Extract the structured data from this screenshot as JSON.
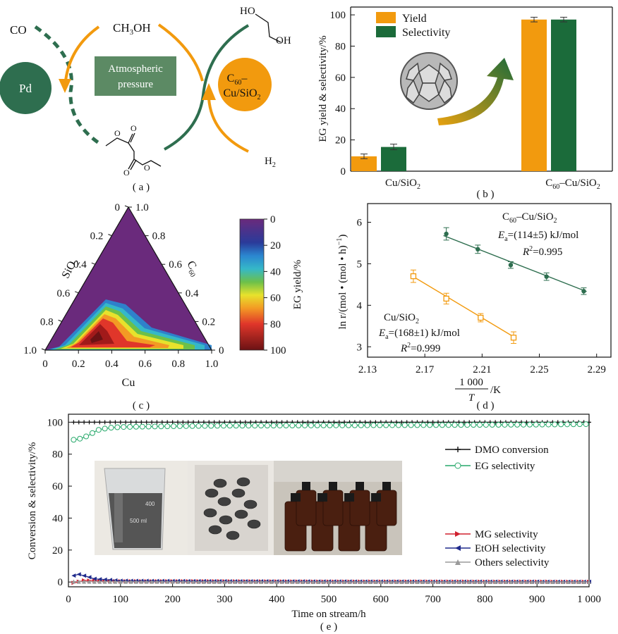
{
  "colors": {
    "green": "#2e6e4f",
    "dark_green": "#1b6b3a",
    "orange": "#f29a0e",
    "box_green": "#5c8a64",
    "conv_black": "#111111",
    "eg_teal": "#27a96b",
    "mg_red": "#d0202e",
    "etoh_blue": "#1f2a8c",
    "others_gray": "#9a9a9a"
  },
  "panel_a": {
    "label": "( a )",
    "co": "CO",
    "methanol": "CH",
    "methanol_sub": "3",
    "methanol_tail": "OH",
    "box_line1": "Atmospheric",
    "box_line2": "pressure",
    "pd": "Pd",
    "catalyst_c": "C",
    "catalyst_c_sub": "60",
    "catalyst_dash": "–",
    "catalyst_line2": "Cu/SiO",
    "catalyst_sub2": "2",
    "h2": "H",
    "h2_sub": "2",
    "ho": "HO",
    "oh": "OH"
  },
  "panel_b": {
    "label": "( b )",
    "ylabel": "EG yield & selectivity/%",
    "categories": [
      "Cu/SiO",
      "C",
      "–Cu/SiO"
    ],
    "cat1": "Cu/SiO",
    "cat1_sub": "2",
    "cat2_pre": "C",
    "cat2_sub1": "60",
    "cat2_mid": "–Cu/SiO",
    "cat2_sub2": "2",
    "yticks": [
      "0",
      "20",
      "40",
      "60",
      "80",
      "100"
    ],
    "legend": [
      "Yield",
      "Selectivity"
    ]
  },
  "panel_c": {
    "label": "( c )",
    "axis_cu": "Cu",
    "axis_sio2": "SiO",
    "axis_sio2_sub": "2",
    "axis_c60": "C",
    "axis_c60_sub": "60",
    "bottom_ticks": [
      "0",
      "0.2",
      "0.4",
      "0.6",
      "0.8",
      "1.0"
    ],
    "left_ticks": [
      "1.0",
      "0.8",
      "0.6",
      "0.4",
      "0.2",
      "0"
    ],
    "right_ticks": [
      "1.0",
      "0.8",
      "0.6",
      "0.4",
      "0.2",
      "0"
    ],
    "colorbar_label": "EG yield/%",
    "colorbar_ticks": [
      "0",
      "20",
      "40",
      "60",
      "80",
      "100"
    ]
  },
  "panel_d": {
    "label": "( d )",
    "xticks": [
      "2.13",
      "2.17",
      "2.21",
      "2.25",
      "2.29"
    ],
    "yticks": [
      "3",
      "4",
      "5",
      "6"
    ],
    "xlabel_num": "1 000",
    "xlabel_den": "T",
    "xlabel_unit": "/K",
    "ylabel": "ln r/(mol • (mol • h)",
    "ylabel_sup": "−1",
    "ylabel_close": ")",
    "green_name_pre": "C",
    "green_name_sub": "60",
    "green_name_post": "–Cu/SiO",
    "green_name_sub2": "2",
    "green_ea": "=(114±5) kJ/mol",
    "green_r2": "=0.995",
    "orange_name": "Cu/SiO",
    "orange_name_sub": "2",
    "orange_ea": "=(168±1) kJ/mol",
    "orange_r2": "=0.999",
    "ea_sym": "E",
    "ea_sub": "a",
    "r2_sym": "R",
    "r2_sup": "2"
  },
  "panel_e": {
    "label": "( e )",
    "xlabel": "Time on stream/h",
    "ylabel": "Conversion & selectivity/%",
    "xticks": [
      "0",
      "100",
      "200",
      "300",
      "400",
      "500",
      "600",
      "700",
      "800",
      "900",
      "1 000"
    ],
    "yticks": [
      "0",
      "20",
      "40",
      "60",
      "80",
      "100"
    ],
    "legend": [
      "DMO conversion",
      "EG selectivity",
      "MG selectivity",
      "EtOH selectivity",
      "Others selectivity"
    ],
    "photo1_label": "500 ml"
  },
  "chart_data": [
    {
      "type": "bar",
      "categories": [
        "Cu/SiO2",
        "C60–Cu/SiO2"
      ],
      "series": [
        {
          "name": "Yield",
          "values": [
            9.5,
            97
          ],
          "errors": [
            1.5,
            1.5
          ]
        },
        {
          "name": "Selectivity",
          "values": [
            15.5,
            97
          ],
          "errors": [
            1.8,
            1.5
          ]
        }
      ],
      "ylim": [
        0,
        105
      ]
    },
    {
      "type": "heatmap",
      "axes": [
        "Cu",
        "SiO2",
        "C60"
      ],
      "colorbar_range": [
        0,
        100
      ],
      "colorbar_label": "EG yield/%"
    },
    {
      "type": "scatter",
      "xlim": [
        2.13,
        2.3
      ],
      "ylim": [
        2.75,
        6.45
      ],
      "series": [
        {
          "name": "C60–Cu/SiO2",
          "x": [
            2.185,
            2.207,
            2.23,
            2.255,
            2.281
          ],
          "y": [
            5.72,
            5.35,
            4.97,
            4.69,
            4.34
          ],
          "errors": [
            0.15,
            0.1,
            0.08,
            0.09,
            0.08
          ],
          "fit": [
            [
              2.183,
              5.68
            ],
            [
              2.283,
              4.33
            ]
          ]
        },
        {
          "name": "Cu/SiO2",
          "x": [
            2.162,
            2.185,
            2.209,
            2.232
          ],
          "y": [
            4.7,
            4.16,
            3.7,
            3.22
          ],
          "errors": [
            0.15,
            0.13,
            0.1,
            0.14
          ],
          "fit": [
            [
              2.16,
              4.73
            ],
            [
              2.234,
              3.2
            ]
          ]
        }
      ]
    },
    {
      "type": "line",
      "xlim": [
        0,
        1000
      ],
      "ylim": [
        -3,
        105
      ],
      "series": [
        {
          "name": "DMO conversion",
          "x": [
            10,
            100,
            300,
            500,
            700,
            1000
          ],
          "y": [
            100,
            100,
            100,
            100,
            100,
            100
          ]
        },
        {
          "name": "EG selectivity",
          "x": [
            10,
            20,
            30,
            40,
            50,
            60,
            80,
            100,
            200,
            300,
            500,
            700,
            900,
            1000
          ],
          "y": [
            89,
            89.5,
            90.5,
            92,
            94,
            95.5,
            96.5,
            97,
            97.5,
            97.8,
            98,
            98.2,
            98.5,
            98.8
          ]
        },
        {
          "name": "MG selectivity",
          "x": [
            10,
            30,
            60,
            100,
            300,
            500,
            700,
            1000
          ],
          "y": [
            -0.5,
            1,
            0.8,
            0.5,
            0.5,
            0.3,
            0.3,
            0.2
          ]
        },
        {
          "name": "EtOH selectivity",
          "x": [
            10,
            20,
            35,
            50,
            100,
            300,
            600,
            1000
          ],
          "y": [
            4,
            4.8,
            3.5,
            2,
            0.8,
            0.5,
            0.3,
            0.2
          ]
        },
        {
          "name": "Others selectivity",
          "x": [
            10,
            50,
            100,
            500,
            1000
          ],
          "y": [
            0.3,
            0.2,
            0.2,
            0.1,
            0.1
          ]
        }
      ]
    }
  ]
}
